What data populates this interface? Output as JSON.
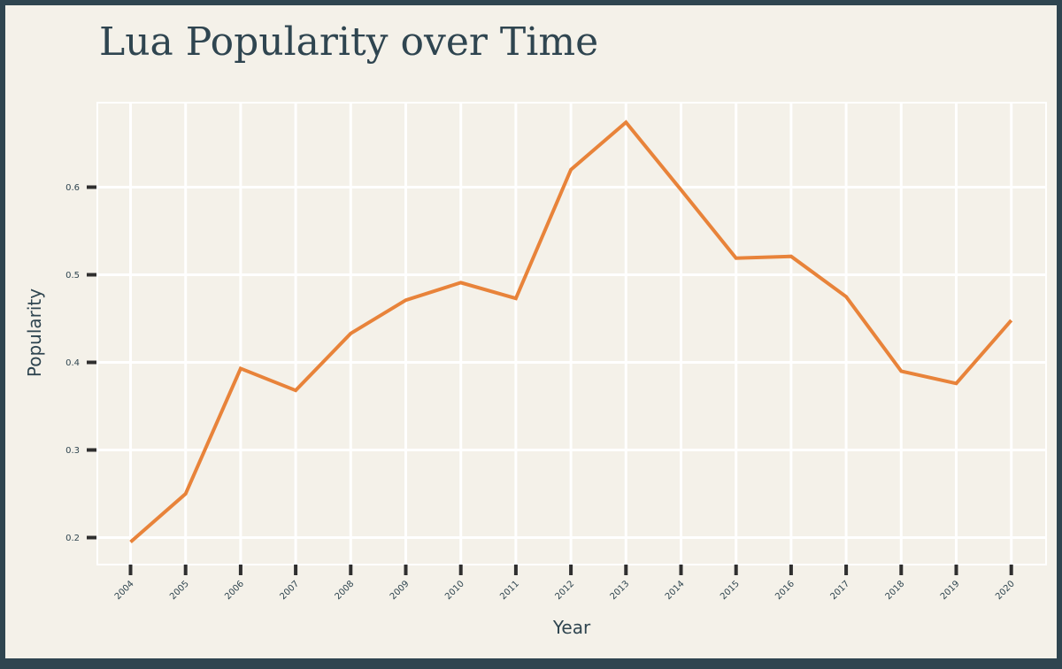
{
  "chart_data": {
    "type": "line",
    "title": "Lua Popularity over Time",
    "xlabel": "Year",
    "ylabel": "Popularity",
    "x": [
      "2004",
      "2005",
      "2006",
      "2007",
      "2008",
      "2009",
      "2010",
      "2011",
      "2012",
      "2013",
      "2014",
      "2015",
      "2016",
      "2017",
      "2018",
      "2019",
      "2020"
    ],
    "series": [
      {
        "values": [
          0.195,
          0.25,
          0.393,
          0.368,
          0.433,
          0.471,
          0.491,
          0.473,
          0.62,
          0.674,
          0.597,
          0.519,
          0.521,
          0.475,
          0.39,
          0.376,
          0.448
        ]
      }
    ],
    "yticks": [
      0.2,
      0.3,
      0.4,
      0.5,
      0.6
    ],
    "ylim": [
      0.17,
      0.7
    ],
    "grid": true,
    "colors": {
      "line": "#e8833a",
      "grid": "#ffffff",
      "tick": "#2f2f2f",
      "background": "#f4f1e9",
      "border": "#2f4550",
      "text": "#2f4550"
    }
  }
}
